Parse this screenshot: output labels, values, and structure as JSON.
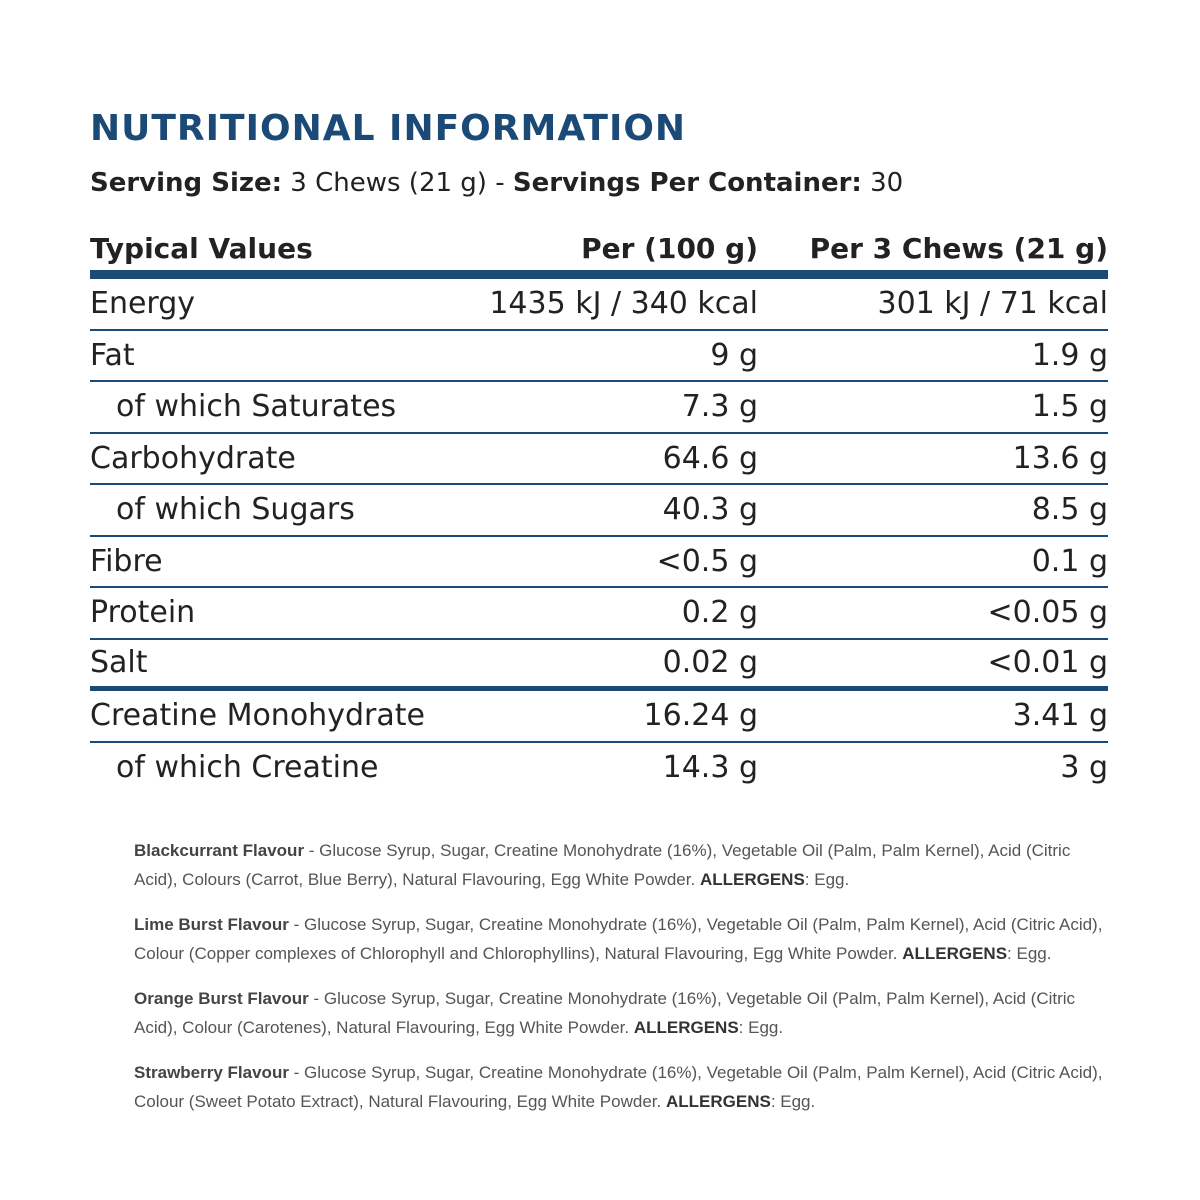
{
  "title": "NUTRITIONAL INFORMATION",
  "serving": {
    "size_label": "Serving Size:",
    "size_value": " 3 Chews (21 g) - ",
    "per_container_label": "Servings Per Container:",
    "per_container_value": " 30"
  },
  "table": {
    "headers": {
      "name": "Typical Values",
      "per100": "Per (100 g)",
      "perServing": "Per 3 Chews (21 g)"
    },
    "rows": [
      {
        "name": "Energy",
        "per100": "1435 kJ / 340 kcal",
        "perServing": "301 kJ / 71 kcal"
      },
      {
        "name": "Fat",
        "per100": "9 g",
        "perServing": "1.9 g"
      },
      {
        "name": "of which Saturates",
        "per100": "7.3 g",
        "perServing": "1.5 g"
      },
      {
        "name": "Carbohydrate",
        "per100": "64.6 g",
        "perServing": "13.6 g"
      },
      {
        "name": "of which Sugars",
        "per100": "40.3 g",
        "perServing": "8.5 g"
      },
      {
        "name": "Fibre",
        "per100": "<0.5 g",
        "perServing": "0.1 g"
      },
      {
        "name": "Protein",
        "per100": "0.2 g",
        "perServing": "<0.05 g"
      },
      {
        "name": "Salt",
        "per100": "0.02 g",
        "perServing": "<0.01 g"
      },
      {
        "name": "Creatine Monohydrate",
        "per100": "16.24 g",
        "perServing": "3.41 g"
      },
      {
        "name": "of which Creatine",
        "per100": "14.3 g",
        "perServing": "3 g"
      }
    ]
  },
  "ingredients": [
    {
      "flavour": "Blackcurrant Flavour",
      "text": " - Glucose Syrup, Sugar, Creatine Monohydrate (16%), Vegetable Oil (Palm, Palm Kernel), Acid (Citric Acid), Colours (Carrot, Blue Berry), Natural Flavouring, Egg White Powder. ",
      "allergen_label": "ALLERGENS",
      "allergen_value": ": Egg."
    },
    {
      "flavour": "Lime Burst Flavour",
      "text": " - Glucose Syrup, Sugar, Creatine Monohydrate (16%), Vegetable Oil (Palm, Palm Kernel), Acid (Citric Acid), Colour (Copper complexes of Chlorophyll and Chlorophyllins), Natural Flavouring, Egg White Powder. ",
      "allergen_label": "ALLERGENS",
      "allergen_value": ": Egg."
    },
    {
      "flavour": "Orange Burst Flavour",
      "text": " - Glucose Syrup, Sugar, Creatine Monohydrate (16%), Vegetable Oil (Palm, Palm Kernel), Acid (Citric Acid), Colour (Carotenes), Natural Flavouring, Egg White Powder. ",
      "allergen_label": "ALLERGENS",
      "allergen_value": ": Egg."
    },
    {
      "flavour": "Strawberry Flavour",
      "text": " - Glucose Syrup, Sugar, Creatine Monohydrate (16%), Vegetable Oil (Palm, Palm Kernel), Acid (Citric Acid), Colour (Sweet Potato Extract), Natural Flavouring, Egg White Powder. ",
      "allergen_label": "ALLERGENS",
      "allergen_value": ": Egg."
    }
  ],
  "colors": {
    "accent": "#1b4a76",
    "text": "#222222",
    "muted": "#555555"
  }
}
